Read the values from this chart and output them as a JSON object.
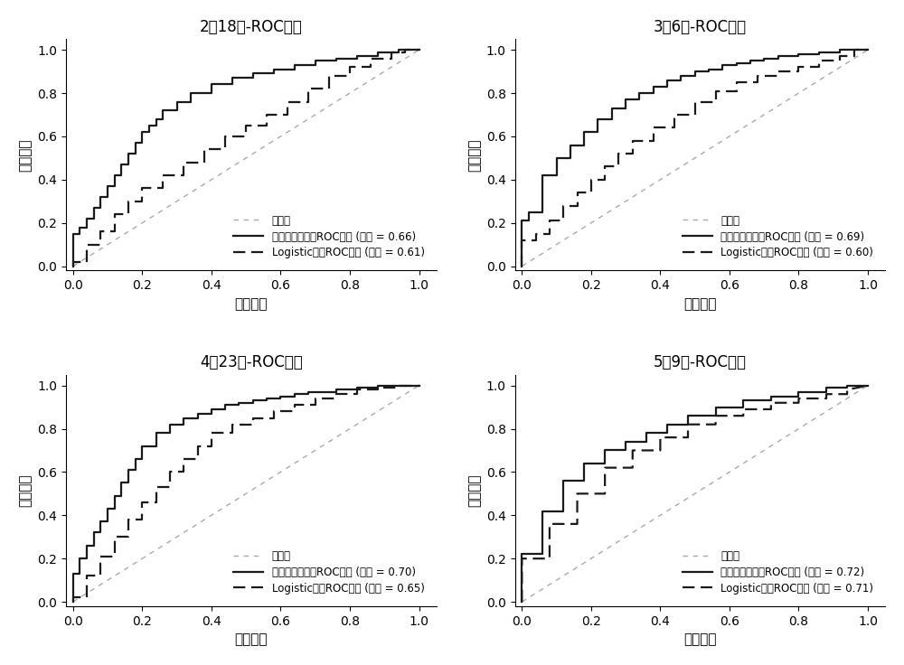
{
  "panels": [
    {
      "title": "2月18日-ROC曲线",
      "svm_label": "相关向量机模型ROC曲线 (面积 = 0.66)",
      "logistic_label": "Logistic模型ROC曲线 (面积 = 0.61)",
      "svm_fpr": [
        0.0,
        0.0,
        0.02,
        0.02,
        0.04,
        0.04,
        0.06,
        0.06,
        0.08,
        0.08,
        0.1,
        0.1,
        0.12,
        0.12,
        0.14,
        0.14,
        0.16,
        0.16,
        0.18,
        0.18,
        0.2,
        0.2,
        0.22,
        0.22,
        0.24,
        0.24,
        0.26,
        0.26,
        0.3,
        0.3,
        0.34,
        0.34,
        0.4,
        0.4,
        0.46,
        0.46,
        0.52,
        0.52,
        0.58,
        0.58,
        0.64,
        0.64,
        0.7,
        0.7,
        0.76,
        0.76,
        0.82,
        0.82,
        0.88,
        0.88,
        0.94,
        0.94,
        1.0
      ],
      "svm_tpr": [
        0.0,
        0.15,
        0.15,
        0.18,
        0.18,
        0.22,
        0.22,
        0.27,
        0.27,
        0.32,
        0.32,
        0.37,
        0.37,
        0.42,
        0.42,
        0.47,
        0.47,
        0.52,
        0.52,
        0.57,
        0.57,
        0.62,
        0.62,
        0.65,
        0.65,
        0.68,
        0.68,
        0.72,
        0.72,
        0.76,
        0.76,
        0.8,
        0.8,
        0.84,
        0.84,
        0.87,
        0.87,
        0.89,
        0.89,
        0.91,
        0.91,
        0.93,
        0.93,
        0.95,
        0.95,
        0.96,
        0.96,
        0.97,
        0.97,
        0.99,
        0.99,
        1.0,
        1.0
      ],
      "log_fpr": [
        0.0,
        0.0,
        0.04,
        0.04,
        0.08,
        0.08,
        0.12,
        0.12,
        0.16,
        0.16,
        0.2,
        0.2,
        0.26,
        0.26,
        0.32,
        0.32,
        0.38,
        0.38,
        0.44,
        0.44,
        0.5,
        0.5,
        0.56,
        0.56,
        0.62,
        0.62,
        0.68,
        0.68,
        0.74,
        0.74,
        0.8,
        0.8,
        0.86,
        0.86,
        0.92,
        0.92,
        0.96,
        0.96,
        1.0
      ],
      "log_tpr": [
        0.0,
        0.02,
        0.02,
        0.1,
        0.1,
        0.16,
        0.16,
        0.24,
        0.24,
        0.3,
        0.3,
        0.36,
        0.36,
        0.42,
        0.42,
        0.48,
        0.48,
        0.54,
        0.54,
        0.6,
        0.6,
        0.65,
        0.65,
        0.7,
        0.7,
        0.76,
        0.76,
        0.82,
        0.82,
        0.88,
        0.88,
        0.92,
        0.92,
        0.96,
        0.96,
        0.99,
        0.99,
        1.0,
        1.0
      ]
    },
    {
      "title": "3月6日-ROC曲线",
      "svm_label": "相关向量机模型ROC曲线 (面积 = 0.69)",
      "logistic_label": "Logistic模型ROC曲线 (面积 = 0.60)",
      "svm_fpr": [
        0.0,
        0.0,
        0.02,
        0.02,
        0.06,
        0.06,
        0.1,
        0.1,
        0.14,
        0.14,
        0.18,
        0.18,
        0.22,
        0.22,
        0.26,
        0.26,
        0.3,
        0.3,
        0.34,
        0.34,
        0.38,
        0.38,
        0.42,
        0.42,
        0.46,
        0.46,
        0.5,
        0.5,
        0.54,
        0.54,
        0.58,
        0.58,
        0.62,
        0.62,
        0.66,
        0.66,
        0.7,
        0.7,
        0.74,
        0.74,
        0.8,
        0.8,
        0.86,
        0.86,
        0.92,
        0.92,
        0.96,
        0.96,
        1.0
      ],
      "svm_tpr": [
        0.0,
        0.21,
        0.21,
        0.25,
        0.25,
        0.42,
        0.42,
        0.5,
        0.5,
        0.56,
        0.56,
        0.62,
        0.62,
        0.68,
        0.68,
        0.73,
        0.73,
        0.77,
        0.77,
        0.8,
        0.8,
        0.83,
        0.83,
        0.86,
        0.86,
        0.88,
        0.88,
        0.9,
        0.9,
        0.91,
        0.91,
        0.93,
        0.93,
        0.94,
        0.94,
        0.95,
        0.95,
        0.96,
        0.96,
        0.97,
        0.97,
        0.98,
        0.98,
        0.99,
        0.99,
        1.0,
        1.0,
        1.0,
        1.0
      ],
      "log_fpr": [
        0.0,
        0.0,
        0.04,
        0.04,
        0.08,
        0.08,
        0.12,
        0.12,
        0.16,
        0.16,
        0.2,
        0.2,
        0.24,
        0.24,
        0.28,
        0.28,
        0.32,
        0.32,
        0.38,
        0.38,
        0.44,
        0.44,
        0.5,
        0.5,
        0.56,
        0.56,
        0.62,
        0.62,
        0.68,
        0.68,
        0.74,
        0.74,
        0.8,
        0.8,
        0.86,
        0.86,
        0.92,
        0.92,
        0.96,
        0.96,
        1.0
      ],
      "log_tpr": [
        0.0,
        0.12,
        0.12,
        0.15,
        0.15,
        0.21,
        0.21,
        0.28,
        0.28,
        0.34,
        0.34,
        0.4,
        0.4,
        0.46,
        0.46,
        0.52,
        0.52,
        0.58,
        0.58,
        0.64,
        0.64,
        0.7,
        0.7,
        0.76,
        0.76,
        0.81,
        0.81,
        0.85,
        0.85,
        0.88,
        0.88,
        0.9,
        0.9,
        0.92,
        0.92,
        0.95,
        0.95,
        0.97,
        0.97,
        1.0,
        1.0
      ]
    },
    {
      "title": "4月23日-ROC曲线",
      "svm_label": "相关向量机模型ROC曲线 (面积 = 0.70)",
      "logistic_label": "Logistic模型ROC曲线 (面积 = 0.65)",
      "svm_fpr": [
        0.0,
        0.0,
        0.02,
        0.02,
        0.04,
        0.04,
        0.06,
        0.06,
        0.08,
        0.08,
        0.1,
        0.1,
        0.12,
        0.12,
        0.14,
        0.14,
        0.16,
        0.16,
        0.18,
        0.18,
        0.2,
        0.2,
        0.24,
        0.24,
        0.28,
        0.28,
        0.32,
        0.32,
        0.36,
        0.36,
        0.4,
        0.4,
        0.44,
        0.44,
        0.48,
        0.48,
        0.52,
        0.52,
        0.56,
        0.56,
        0.6,
        0.6,
        0.64,
        0.64,
        0.68,
        0.68,
        0.72,
        0.72,
        0.76,
        0.76,
        0.82,
        0.82,
        0.88,
        0.88,
        0.94,
        0.94,
        1.0
      ],
      "svm_tpr": [
        0.0,
        0.13,
        0.13,
        0.2,
        0.2,
        0.26,
        0.26,
        0.32,
        0.32,
        0.37,
        0.37,
        0.43,
        0.43,
        0.49,
        0.49,
        0.55,
        0.55,
        0.61,
        0.61,
        0.66,
        0.66,
        0.72,
        0.72,
        0.78,
        0.78,
        0.82,
        0.82,
        0.85,
        0.85,
        0.87,
        0.87,
        0.89,
        0.89,
        0.91,
        0.91,
        0.92,
        0.92,
        0.93,
        0.93,
        0.94,
        0.94,
        0.95,
        0.95,
        0.96,
        0.96,
        0.97,
        0.97,
        0.97,
        0.97,
        0.98,
        0.98,
        0.99,
        0.99,
        1.0,
        1.0,
        1.0,
        1.0
      ],
      "log_fpr": [
        0.0,
        0.0,
        0.04,
        0.04,
        0.08,
        0.08,
        0.12,
        0.12,
        0.16,
        0.16,
        0.2,
        0.2,
        0.24,
        0.24,
        0.28,
        0.28,
        0.32,
        0.32,
        0.36,
        0.36,
        0.4,
        0.4,
        0.46,
        0.46,
        0.52,
        0.52,
        0.58,
        0.58,
        0.64,
        0.64,
        0.7,
        0.7,
        0.76,
        0.76,
        0.82,
        0.82,
        0.88,
        0.88,
        0.94,
        0.94,
        1.0
      ],
      "log_tpr": [
        0.0,
        0.02,
        0.02,
        0.12,
        0.12,
        0.21,
        0.21,
        0.3,
        0.3,
        0.38,
        0.38,
        0.46,
        0.46,
        0.53,
        0.53,
        0.6,
        0.6,
        0.66,
        0.66,
        0.72,
        0.72,
        0.78,
        0.78,
        0.82,
        0.82,
        0.85,
        0.85,
        0.88,
        0.88,
        0.91,
        0.91,
        0.94,
        0.94,
        0.96,
        0.96,
        0.98,
        0.98,
        0.99,
        0.99,
        1.0,
        1.0
      ]
    },
    {
      "title": "5月9日-ROC曲线",
      "svm_label": "相关向量机模型ROC曲线 (面积 = 0.72)",
      "logistic_label": "Logistic模型ROC曲线 (面积 = 0.71)",
      "svm_fpr": [
        0.0,
        0.0,
        0.06,
        0.06,
        0.12,
        0.12,
        0.18,
        0.18,
        0.24,
        0.24,
        0.3,
        0.3,
        0.36,
        0.36,
        0.42,
        0.42,
        0.48,
        0.48,
        0.56,
        0.56,
        0.64,
        0.64,
        0.72,
        0.72,
        0.8,
        0.8,
        0.88,
        0.88,
        0.94,
        0.94,
        1.0
      ],
      "svm_tpr": [
        0.0,
        0.22,
        0.22,
        0.42,
        0.42,
        0.56,
        0.56,
        0.64,
        0.64,
        0.7,
        0.7,
        0.74,
        0.74,
        0.78,
        0.78,
        0.82,
        0.82,
        0.86,
        0.86,
        0.9,
        0.9,
        0.93,
        0.93,
        0.95,
        0.95,
        0.97,
        0.97,
        0.99,
        0.99,
        1.0,
        1.0
      ],
      "log_fpr": [
        0.0,
        0.0,
        0.08,
        0.08,
        0.16,
        0.16,
        0.24,
        0.24,
        0.32,
        0.32,
        0.4,
        0.4,
        0.48,
        0.48,
        0.56,
        0.56,
        0.64,
        0.64,
        0.72,
        0.72,
        0.8,
        0.8,
        0.88,
        0.88,
        0.94,
        0.94,
        1.0
      ],
      "log_tpr": [
        0.0,
        0.2,
        0.2,
        0.36,
        0.36,
        0.5,
        0.5,
        0.62,
        0.62,
        0.7,
        0.7,
        0.76,
        0.76,
        0.82,
        0.82,
        0.86,
        0.86,
        0.89,
        0.89,
        0.92,
        0.92,
        0.94,
        0.94,
        0.96,
        0.96,
        0.98,
        1.0
      ]
    }
  ],
  "diagonal_label": "对角线",
  "xlabel": "假正例率",
  "ylabel": "真正例率",
  "line_color": "#1a1a1a",
  "diag_color": "#aaaaaa",
  "bg_color": "#ffffff",
  "svm_linewidth": 1.6,
  "log_linewidth": 1.6,
  "diag_linewidth": 1.0
}
